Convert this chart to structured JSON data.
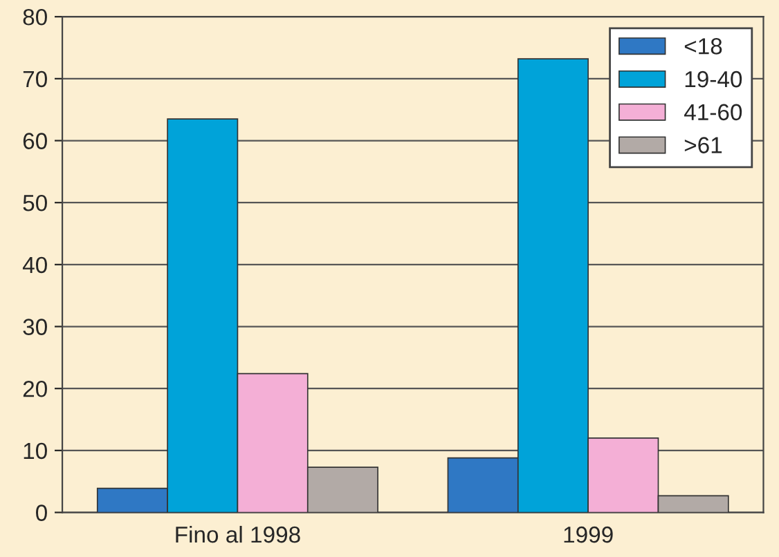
{
  "chart_data": {
    "type": "bar",
    "categories": [
      "Fino al 1998",
      "1999"
    ],
    "series": [
      {
        "name": "<18",
        "color": "#2f78c4",
        "values": [
          3.9,
          8.8
        ]
      },
      {
        "name": "19-40",
        "color": "#00a3d9",
        "values": [
          63.5,
          73.2
        ]
      },
      {
        "name": "41-60",
        "color": "#f4afd6",
        "values": [
          22.4,
          12
        ]
      },
      {
        "name": ">61",
        "color": "#b2aaa6",
        "values": [
          7.3,
          2.7
        ]
      }
    ],
    "ylim": [
      0,
      80
    ],
    "yticks": [
      0,
      10,
      20,
      30,
      40,
      50,
      60,
      70,
      80
    ],
    "grid": "y",
    "legend": "top right"
  }
}
